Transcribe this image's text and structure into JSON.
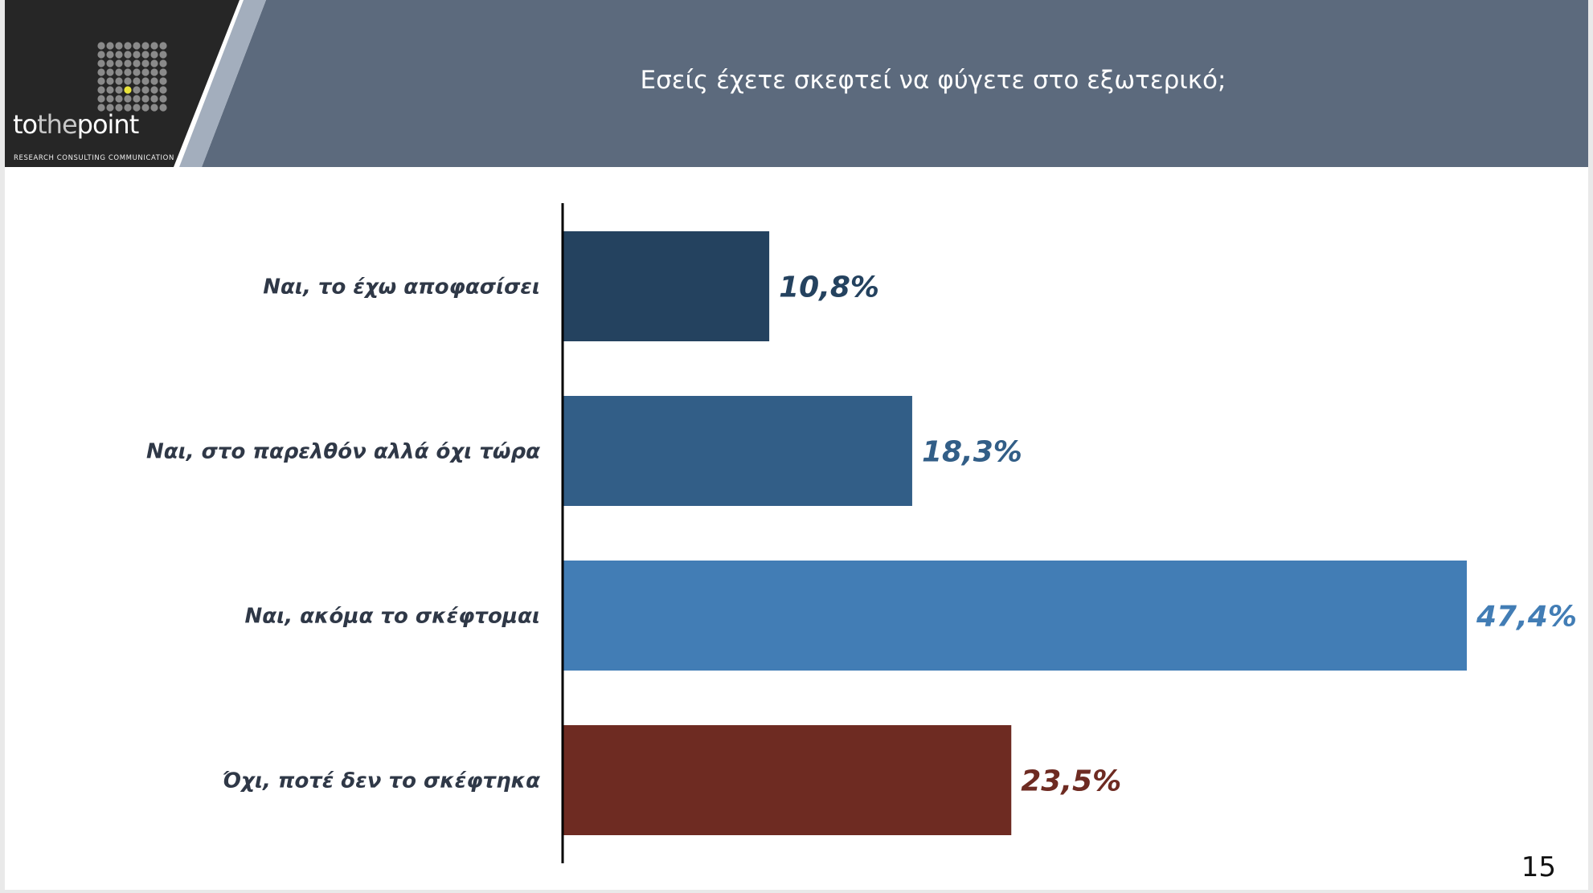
{
  "logo": {
    "part1": "to",
    "part2": "the",
    "part3": "point",
    "tagline": "RESEARCH  CONSULTING  COMMUNICATION"
  },
  "header": {
    "title": "Εσείς έχετε σκεφτεί να φύγετε στο εξωτερικό;"
  },
  "page_number": "15",
  "chart_data": {
    "type": "bar",
    "orientation": "horizontal",
    "categories": [
      "Ναι, το έχω αποφασίσει",
      "Ναι, στο παρελθόν αλλά όχι τώρα",
      "Ναι, ακόμα το σκέφτομαι",
      "Όχι, ποτέ δεν το σκέφτηκα"
    ],
    "values": [
      10.8,
      18.3,
      47.4,
      23.5
    ],
    "value_labels": [
      "10,8%",
      "18,3%",
      "47,4%",
      "23,5%"
    ],
    "colors": [
      "#24425f",
      "#325e87",
      "#427db5",
      "#6e2b22"
    ],
    "xlim": [
      0,
      47.4
    ],
    "grid": false,
    "legend": "none"
  }
}
